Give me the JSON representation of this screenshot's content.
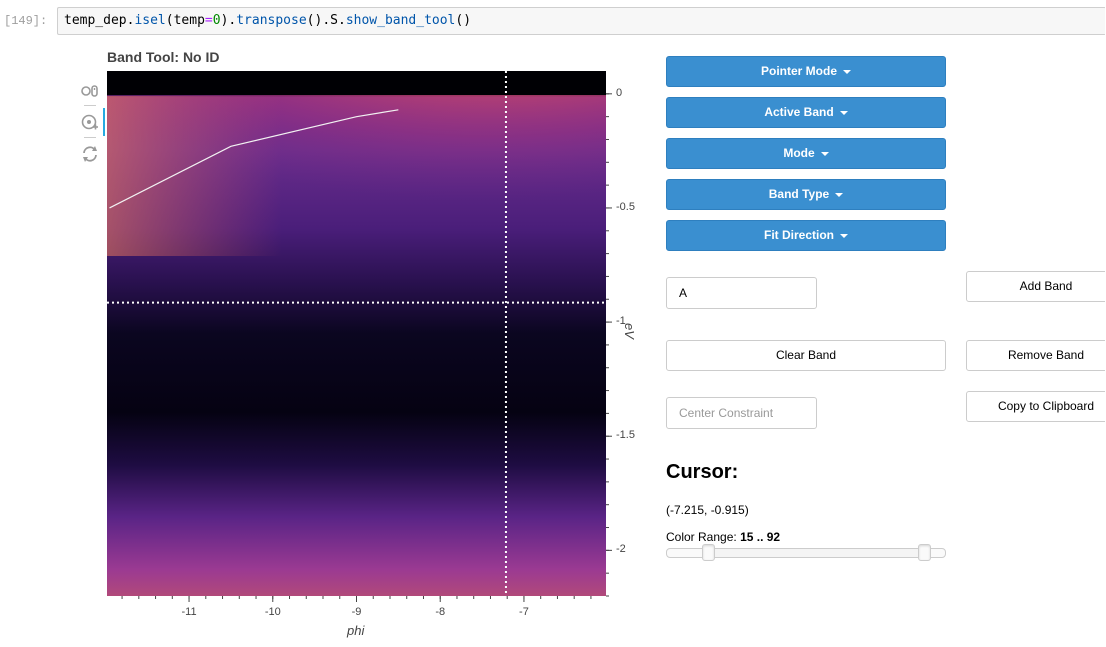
{
  "cell": {
    "prompt": "[149]:",
    "code_parts": {
      "obj": "temp_dep.",
      "isel": "isel",
      "p1": "(temp",
      "eq": "=",
      "zero": "0",
      "p2": ").",
      "transpose": "transpose",
      "p3": "().S.",
      "show": "show_band_tool",
      "p4": "()"
    }
  },
  "plot": {
    "title": "Band Tool: No ID",
    "x_axis_label": "phi",
    "y_axis_label": "eV",
    "toolbar_icons": [
      "pan-wheel-icon",
      "crosshair-hover-icon",
      "reset-icon"
    ]
  },
  "chart_data": {
    "type": "heatmap",
    "title": "Band Tool: No ID",
    "xlabel": "phi",
    "ylabel": "eV",
    "x_ticks": [
      "-11",
      "-10",
      "-9",
      "-8",
      "-7"
    ],
    "y_ticks": [
      "0",
      "-0.5",
      "-1",
      "-1.5",
      "-2"
    ],
    "xlim": [
      -11.98,
      -6.02
    ],
    "ylim": [
      -2.2,
      0.1
    ],
    "colormap": "magma",
    "crosshair": {
      "x": -7.215,
      "y": -0.915
    },
    "band_line": {
      "x": [
        -11.95,
        -10.5,
        -9.0,
        -8.5
      ],
      "y": [
        -0.5,
        -0.23,
        -0.1,
        -0.07
      ]
    }
  },
  "controls": {
    "pointer_mode": "Pointer Mode",
    "active_band": "Active Band",
    "mode": "Mode",
    "band_type": "Band Type",
    "fit_direction": "Fit Direction",
    "band_name_value": "A",
    "add_band": "Add Band",
    "clear_band": "Clear Band",
    "remove_band": "Remove Band",
    "center_constraint_placeholder": "Center Constraint",
    "copy_to": "Copy to Clipboard",
    "accent_color": "#3a8fd0"
  },
  "cursor": {
    "heading": "Cursor:",
    "value": "(-7.215, -0.915)"
  },
  "color_range": {
    "label": "Color Range:",
    "value": "15 .. 92",
    "low": 15,
    "high": 92
  }
}
